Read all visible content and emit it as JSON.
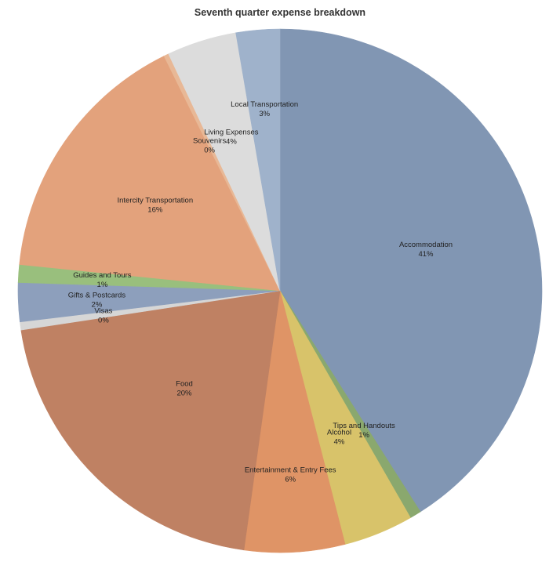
{
  "chart_data": {
    "type": "pie",
    "title": "Seventh quarter expense breakdown",
    "start_angle_deg": 0,
    "direction": "clockwise",
    "legend": "none",
    "slices": [
      {
        "label": "Accommodation",
        "value": 41.0,
        "display": "41%",
        "color": "#8196b3"
      },
      {
        "label": "Tips and Handouts",
        "value": 0.7,
        "display": "1%",
        "color": "#8aa86e"
      },
      {
        "label": "Alcohol",
        "value": 4.3,
        "display": "4%",
        "color": "#d8c36a"
      },
      {
        "label": "Entertainment & Entry Fees",
        "value": 6.2,
        "display": "6%",
        "color": "#df9466"
      },
      {
        "label": "Food",
        "value": 20.4,
        "display": "20%",
        "color": "#bf8163"
      },
      {
        "label": "Visas",
        "value": 0.5,
        "display": "0%",
        "color": "#d6d6d6"
      },
      {
        "label": "Gifts & Postcards",
        "value": 2.4,
        "display": "2%",
        "color": "#8d9fbc"
      },
      {
        "label": "Guides and Tours",
        "value": 1.1,
        "display": "1%",
        "color": "#99bf7d"
      },
      {
        "label": "Intercity Transportation",
        "value": 16.1,
        "display": "16%",
        "color": "#e3a27c"
      },
      {
        "label": "Souvenirs",
        "value": 0.3,
        "display": "0%",
        "color": "#e8b896"
      },
      {
        "label": "Living Expenses",
        "value": 4.3,
        "display": "4%",
        "color": "#dcdcdc"
      },
      {
        "label": "Local Transportation",
        "value": 2.7,
        "display": "3%",
        "color": "#9fb2cb"
      }
    ]
  }
}
